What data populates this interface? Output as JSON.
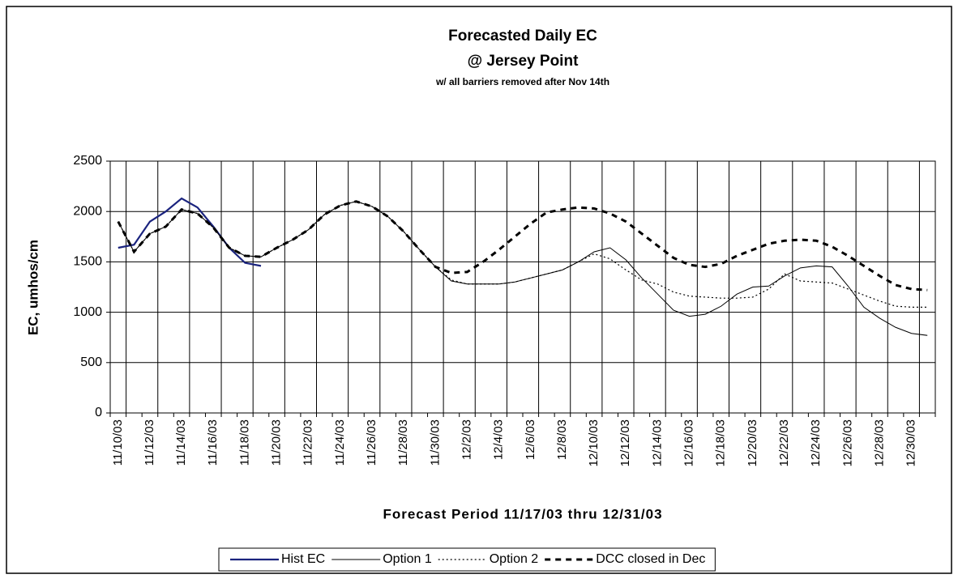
{
  "chart_data": {
    "type": "line",
    "title": "Forecasted Daily EC",
    "subtitle": "@ Jersey Point",
    "note": "w/ all barriers removed after Nov 14th",
    "x_label": "Forecast Period 11/17/03 thru 12/31/03",
    "y_label": "EC, umhos/cm",
    "categories": [
      "11/10/03",
      null,
      "11/12/03",
      null,
      "11/14/03",
      null,
      "11/16/03",
      null,
      "11/18/03",
      null,
      "11/20/03",
      null,
      "11/22/03",
      null,
      "11/24/03",
      null,
      "11/26/03",
      null,
      "11/28/03",
      null,
      "11/30/03",
      null,
      "12/2/03",
      null,
      "12/4/03",
      null,
      "12/6/03",
      null,
      "12/8/03",
      null,
      "12/10/03",
      null,
      "12/12/03",
      null,
      "12/14/03",
      null,
      "12/16/03",
      null,
      "12/18/03",
      null,
      "12/20/03",
      null,
      "12/22/03",
      null,
      "12/24/03",
      null,
      "12/26/03",
      null,
      "12/28/03",
      null,
      "12/30/03",
      null
    ],
    "ylim": [
      0,
      2500
    ],
    "yticks": [
      0,
      500,
      1000,
      1500,
      2000,
      2500
    ],
    "grid": true,
    "legend": "bottom",
    "series": [
      {
        "name": "Hist EC",
        "color": "#1a237e",
        "dash": "solid",
        "width": 2.2,
        "values": [
          1640,
          1670,
          1900,
          2000,
          2130,
          2040,
          1850,
          1640,
          1490,
          1460,
          null,
          null,
          null,
          null,
          null,
          null,
          null,
          null,
          null,
          null,
          null,
          null,
          null,
          null,
          null,
          null,
          null,
          null,
          null,
          null,
          null,
          null,
          null,
          null,
          null,
          null,
          null,
          null,
          null,
          null,
          null,
          null,
          null,
          null,
          null,
          null,
          null,
          null,
          null,
          null,
          null,
          null
        ]
      },
      {
        "name": "Option 1",
        "color": "#000000",
        "dash": "solid",
        "width": 1,
        "values": [
          1900,
          1600,
          1780,
          1850,
          2020,
          1980,
          1840,
          1640,
          1560,
          1550,
          1640,
          1720,
          1820,
          1970,
          2060,
          2100,
          2050,
          1950,
          1800,
          1620,
          1450,
          1310,
          1280,
          1280,
          1280,
          1300,
          1340,
          1380,
          1420,
          1500,
          1600,
          1640,
          1520,
          1340,
          1180,
          1020,
          960,
          980,
          1060,
          1180,
          1250,
          1260,
          1360,
          1440,
          1460,
          1450,
          1260,
          1050,
          940,
          850,
          790,
          770
        ]
      },
      {
        "name": "Option 2",
        "color": "#000000",
        "dash": "dotted",
        "width": 1.2,
        "values": [
          1900,
          1600,
          1780,
          1850,
          2020,
          1980,
          1840,
          1640,
          1560,
          1550,
          1640,
          1720,
          1820,
          1970,
          2060,
          2100,
          2050,
          1950,
          1800,
          1620,
          1450,
          1320,
          1280,
          1280,
          1280,
          1300,
          1340,
          1380,
          1420,
          1500,
          1580,
          1530,
          1420,
          1320,
          1280,
          1200,
          1160,
          1150,
          1140,
          1140,
          1150,
          1230,
          1380,
          1310,
          1300,
          1290,
          1230,
          1170,
          1110,
          1060,
          1050,
          1050
        ]
      },
      {
        "name": "DCC closed in Dec",
        "color": "#000000",
        "dash": "dashed",
        "width": 3,
        "values": [
          1900,
          1600,
          1780,
          1850,
          2020,
          1980,
          1840,
          1640,
          1560,
          1550,
          1640,
          1720,
          1820,
          1970,
          2060,
          2100,
          2050,
          1950,
          1800,
          1620,
          1450,
          1390,
          1400,
          1500,
          1620,
          1750,
          1880,
          1990,
          2020,
          2040,
          2030,
          1980,
          1900,
          1780,
          1660,
          1540,
          1470,
          1450,
          1480,
          1560,
          1620,
          1680,
          1710,
          1720,
          1710,
          1650,
          1560,
          1460,
          1360,
          1270,
          1230,
          1220
        ]
      }
    ]
  }
}
